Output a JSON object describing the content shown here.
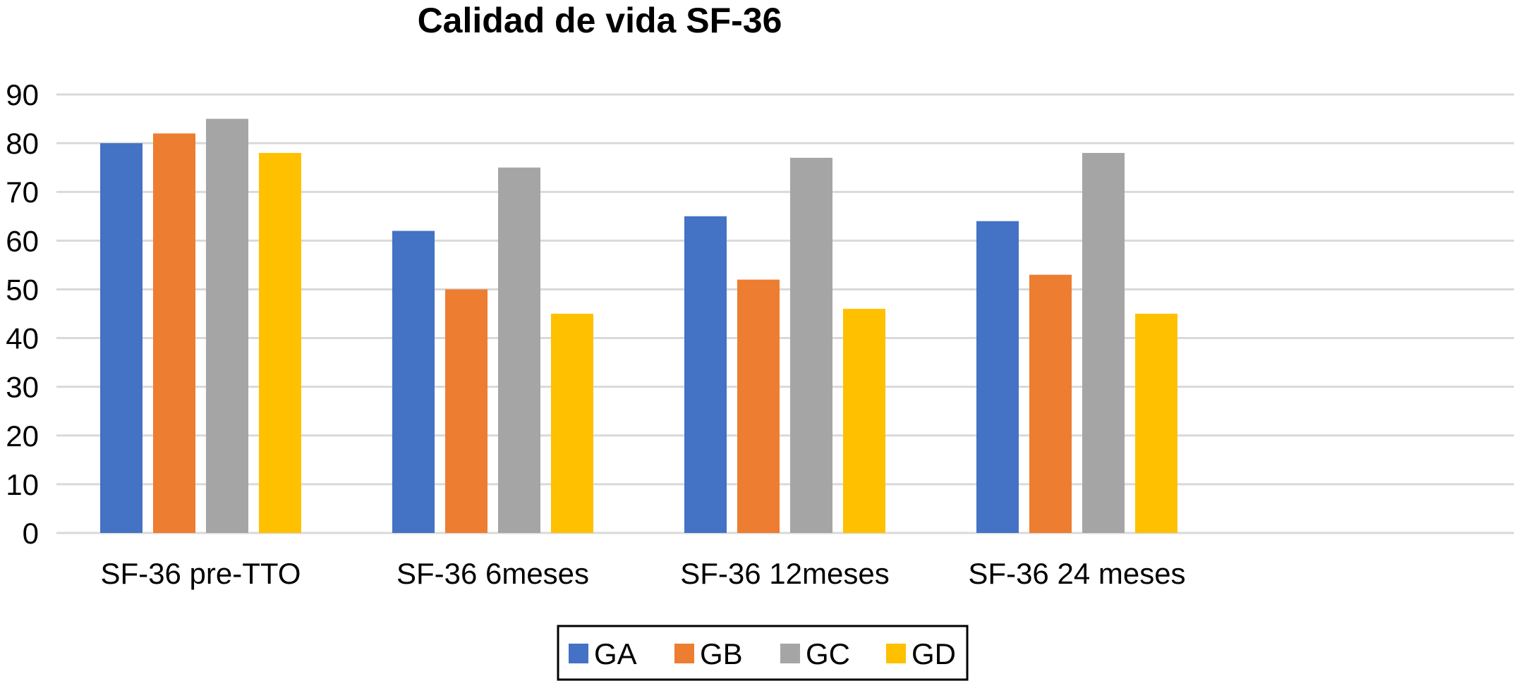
{
  "chart_data": {
    "type": "bar",
    "title": "Calidad de vida SF-36",
    "xlabel": "",
    "ylabel": "",
    "categories": [
      "SF-36 pre-TTO",
      "SF-36 6meses",
      "SF-36 12meses",
      "SF-36 24 meses"
    ],
    "series": [
      {
        "name": "GA",
        "color": "#4472c4",
        "values": [
          80,
          62,
          65,
          64
        ]
      },
      {
        "name": "GB",
        "color": "#ed7d31",
        "values": [
          82,
          50,
          52,
          53
        ]
      },
      {
        "name": "GC",
        "color": "#a5a5a5",
        "values": [
          85,
          75,
          77,
          78
        ]
      },
      {
        "name": "GD",
        "color": "#ffc000",
        "values": [
          78,
          45,
          46,
          45
        ]
      }
    ],
    "ylim": [
      0,
      90
    ],
    "yticks": [
      0,
      10,
      20,
      30,
      40,
      50,
      60,
      70,
      80,
      90
    ],
    "grid": true,
    "legend_position": "bottom"
  }
}
